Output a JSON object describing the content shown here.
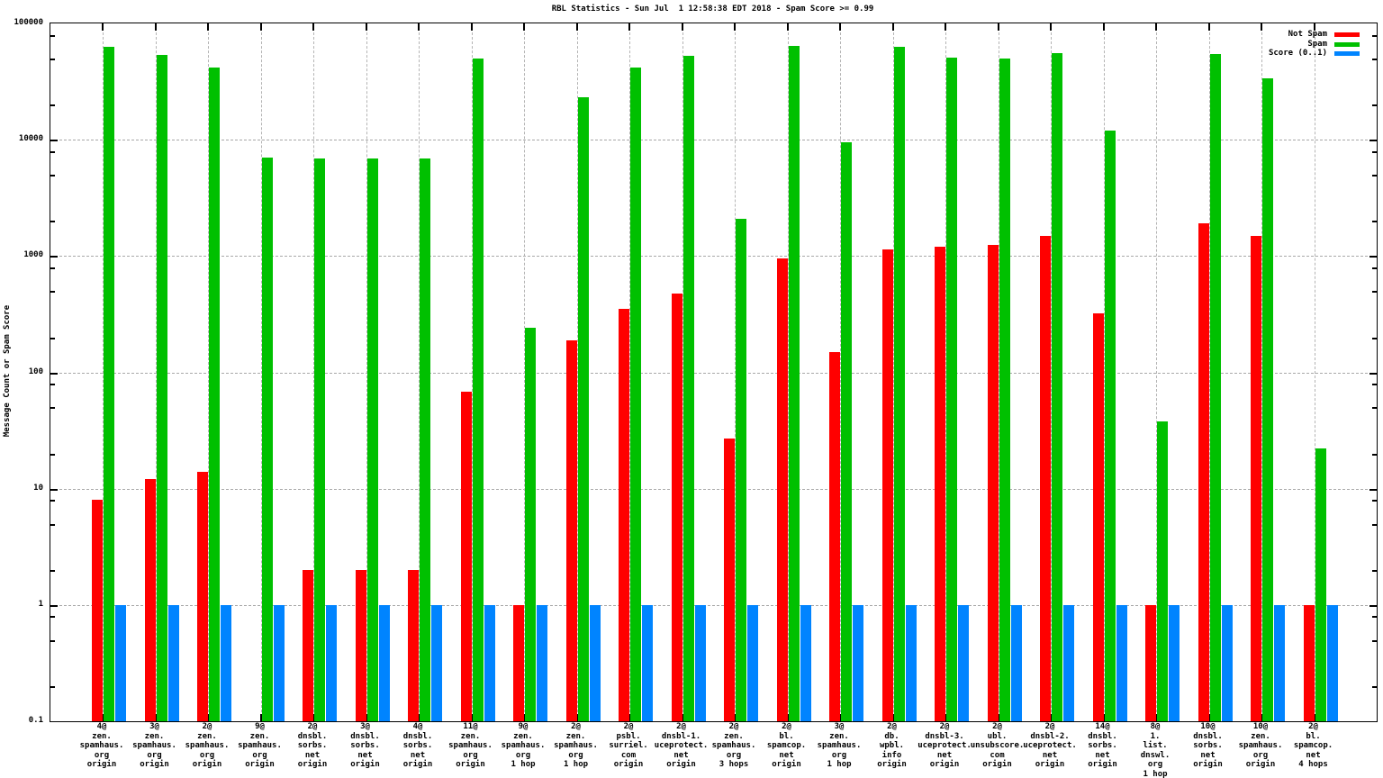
{
  "chart_data": {
    "type": "bar",
    "title": "RBL Statistics - Sun Jul  1 12:58:38 EDT 2018 - Spam Score >= 0.99",
    "ylabel": "Message Count or Spam Score",
    "y_scale": "log",
    "ylim": [
      0.1,
      100000
    ],
    "y_ticks": [
      0.1,
      1,
      10,
      100,
      1000,
      10000,
      100000
    ],
    "y_minor_ticks_per_decade": [
      2,
      5,
      8
    ],
    "grid": true,
    "legend_position": "top-right-inside",
    "categories": [
      [
        "4@",
        "zen.",
        "spamhaus.",
        "org",
        "origin"
      ],
      [
        "3@",
        "zen.",
        "spamhaus.",
        "org",
        "origin"
      ],
      [
        "2@",
        "zen.",
        "spamhaus.",
        "org",
        "origin"
      ],
      [
        "9@",
        "zen.",
        "spamhaus.",
        "org",
        "origin"
      ],
      [
        "2@",
        "dnsbl.",
        "sorbs.",
        "net",
        "origin"
      ],
      [
        "3@",
        "dnsbl.",
        "sorbs.",
        "net",
        "origin"
      ],
      [
        "4@",
        "dnsbl.",
        "sorbs.",
        "net",
        "origin"
      ],
      [
        "11@",
        "zen.",
        "spamhaus.",
        "org",
        "origin"
      ],
      [
        "9@",
        "zen.",
        "spamhaus.",
        "org",
        "1 hop"
      ],
      [
        "2@",
        "zen.",
        "spamhaus.",
        "org",
        "1 hop"
      ],
      [
        "2@",
        "psbl.",
        "surriel.",
        "com",
        "origin"
      ],
      [
        "2@",
        "dnsbl-1.",
        "uceprotect.",
        "net",
        "origin"
      ],
      [
        "2@",
        "zen.",
        "spamhaus.",
        "org",
        "3 hops"
      ],
      [
        "2@",
        "bl.",
        "spamcop.",
        "net",
        "origin"
      ],
      [
        "3@",
        "zen.",
        "spamhaus.",
        "org",
        "1 hop"
      ],
      [
        "2@",
        "db.",
        "wpbl.",
        "info",
        "origin"
      ],
      [
        "2@",
        "dnsbl-3.",
        "uceprotect.",
        "net",
        "origin"
      ],
      [
        "2@",
        "ubl.",
        "unsubscore.",
        "com",
        "origin"
      ],
      [
        "2@",
        "dnsbl-2.",
        "uceprotect.",
        "net",
        "origin"
      ],
      [
        "14@",
        "dnsbl.",
        "sorbs.",
        "net",
        "origin"
      ],
      [
        "8@",
        "1.",
        "list.",
        "dnswl.",
        "org",
        "1 hop"
      ],
      [
        "10@",
        "dnsbl.",
        "sorbs.",
        "net",
        "origin"
      ],
      [
        "10@",
        "zen.",
        "spamhaus.",
        "org",
        "origin"
      ],
      [
        "2@",
        "bl.",
        "spamcop.",
        "net",
        "4 hops"
      ]
    ],
    "series": [
      {
        "name": "Not Spam",
        "color": "#ff0000",
        "values": [
          8,
          12,
          14,
          null,
          2,
          2,
          2,
          68,
          1,
          190,
          350,
          480,
          27,
          950,
          150,
          1150,
          1200,
          1250,
          1500,
          320,
          1,
          1900,
          1500,
          1
        ]
      },
      {
        "name": "Spam",
        "color": "#00c000",
        "values": [
          63000,
          54000,
          42000,
          7000,
          6900,
          6900,
          6900,
          50000,
          240,
          23000,
          42000,
          53000,
          2100,
          64000,
          9500,
          63000,
          51000,
          50000,
          56000,
          12000,
          38,
          55000,
          34000,
          22
        ]
      },
      {
        "name": "Score (0..1)",
        "color": "#0084ff",
        "values": [
          1,
          1,
          1,
          1,
          1,
          1,
          1,
          1,
          1,
          1,
          1,
          1,
          1,
          1,
          1,
          1,
          1,
          1,
          1,
          1,
          1,
          1,
          1,
          1
        ]
      }
    ]
  }
}
